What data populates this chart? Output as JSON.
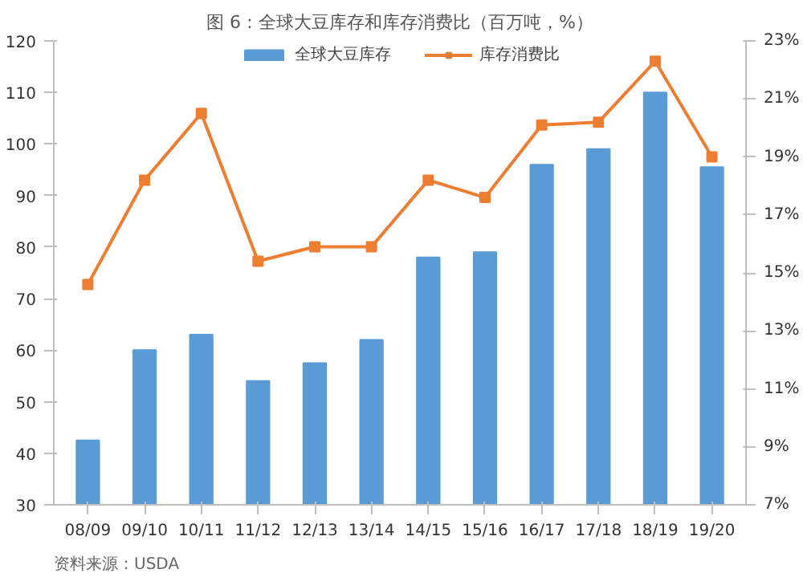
{
  "chart_data": {
    "type": "bar",
    "title": "图 6：全球大豆库存和库存消费比（百万吨，%）",
    "categories": [
      "08/09",
      "09/10",
      "10/11",
      "11/12",
      "12/13",
      "13/14",
      "14/15",
      "15/16",
      "16/17",
      "17/18",
      "18/19",
      "19/20"
    ],
    "series": [
      {
        "name": "全球大豆库存",
        "color": "#5b9bd5",
        "values": [
          42.5,
          60,
          63,
          54,
          57.5,
          62,
          78,
          79,
          96,
          99,
          110,
          95.5
        ]
      },
      {
        "name": "库存消费比",
        "type": "line",
        "axis": "y2",
        "color": "#ed7d31",
        "values": [
          14.6,
          18.2,
          20.5,
          15.4,
          15.9,
          15.9,
          18.2,
          17.6,
          20.1,
          20.2,
          22.3,
          19.0
        ]
      }
    ],
    "ylim": [
      30,
      120
    ],
    "yticks": [
      30,
      40,
      50,
      60,
      70,
      80,
      90,
      100,
      110,
      120
    ],
    "y2lim": [
      7,
      23
    ],
    "y2ticks": [
      {
        "value": 7,
        "label": "7%"
      },
      {
        "value": 9,
        "label": "9%"
      },
      {
        "value": 11,
        "label": "11%"
      },
      {
        "value": 13,
        "label": "13%"
      },
      {
        "value": 15,
        "label": "15%"
      },
      {
        "value": 17,
        "label": "17%"
      },
      {
        "value": 19,
        "label": "19%"
      },
      {
        "value": 21,
        "label": "21%"
      },
      {
        "value": 23,
        "label": "23%"
      }
    ],
    "marker": "square",
    "legend": "top",
    "grid": false,
    "annotations": [
      "资料来源：USDA"
    ]
  }
}
